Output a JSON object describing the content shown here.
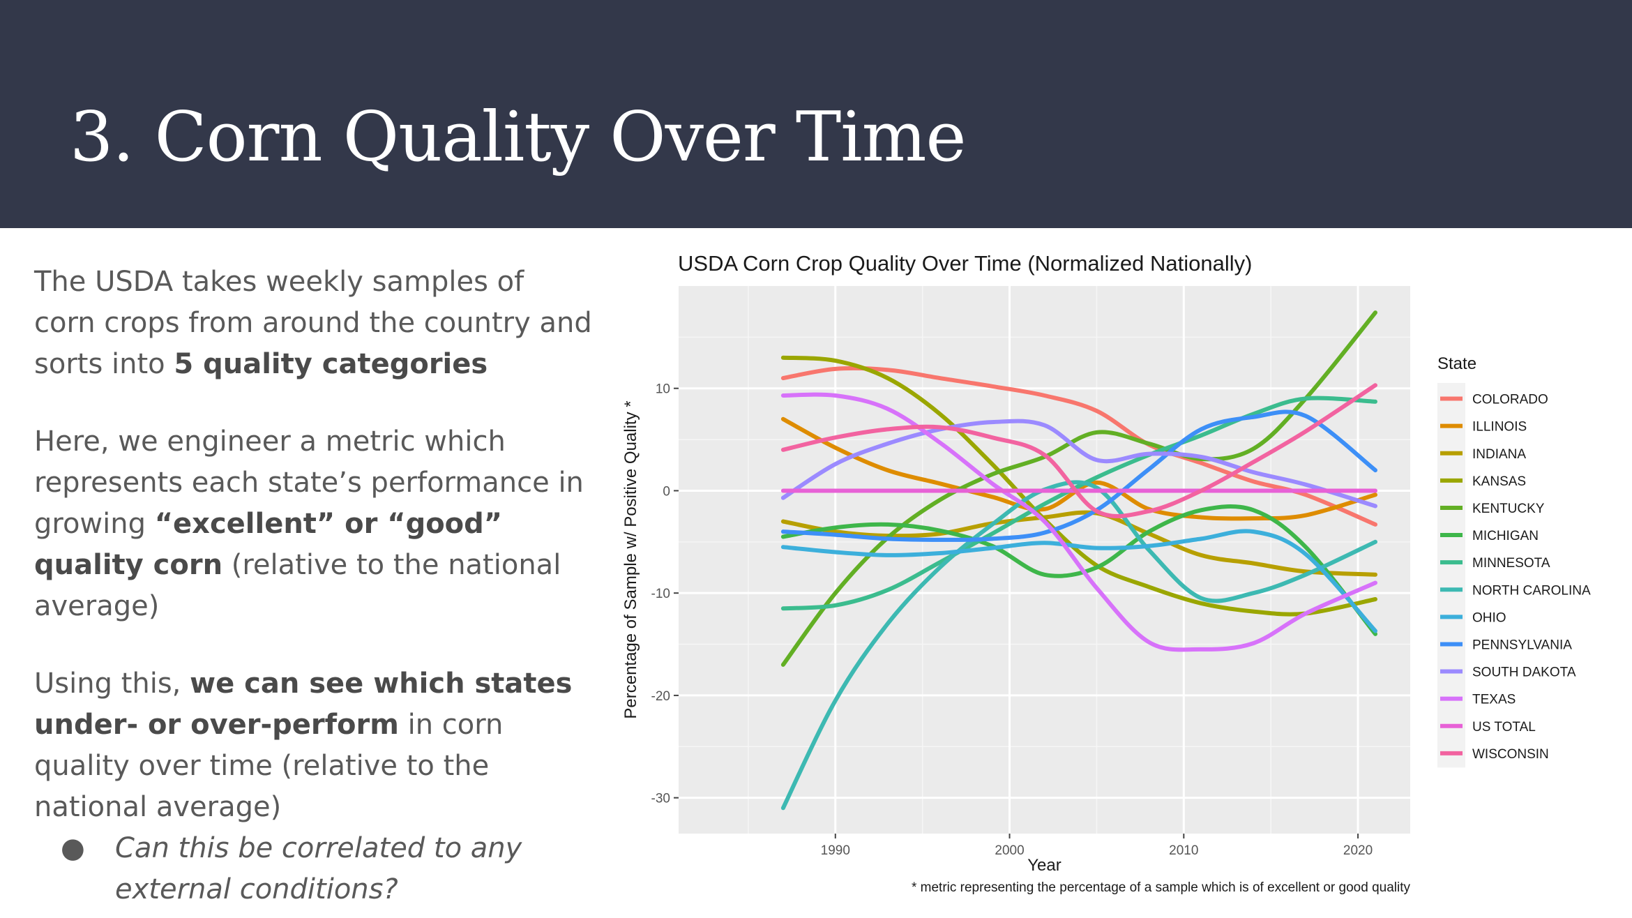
{
  "slide": {
    "title": "3. Corn Quality Over Time"
  },
  "text": {
    "p1_a": "The USDA takes weekly samples of corn crops from around the country and sorts into ",
    "p1_b": "5 quality categories",
    "p2_a": "Here, we engineer a metric which represents each state’s performance in growing ",
    "p2_b": "“excellent” or “good” quality corn",
    "p2_c": " (relative to the national average)",
    "p3_a": "Using this, ",
    "p3_b": "we can see which states under- or over-perform",
    "p3_c": " in corn quality over time (relative to the national average)",
    "bullet_symbol": "●",
    "bullet": "Can this be correlated to any external conditions?"
  },
  "chart_data": {
    "type": "line",
    "title": "USDA Corn Crop Quality Over Time (Normalized Nationally)",
    "xlabel": "Year",
    "ylabel": "Percentage of Sample w/ Positive Quality *",
    "footnote": "* metric representing the percentage of a sample which is of excellent or good quality",
    "xlim": [
      1981,
      2023
    ],
    "ylim": [
      -33.5,
      20
    ],
    "x_ticks": [
      1990,
      2000,
      2010,
      2020
    ],
    "y_ticks": [
      10,
      0,
      -10,
      -20,
      -30
    ],
    "grid": true,
    "panel_color": "#ebebeb",
    "legend_title": "State",
    "legend_position": "right",
    "x": [
      1987,
      1990,
      1993,
      1996,
      1999,
      2002,
      2005,
      2008,
      2011,
      2014,
      2017,
      2021
    ],
    "series": [
      {
        "name": "COLORADO",
        "color": "#F8766D",
        "values": [
          11,
          11.9,
          11.8,
          11.0,
          10.2,
          9.3,
          7.8,
          4.5,
          2.7,
          0.9,
          -0.4,
          -3.3
        ]
      },
      {
        "name": "ILLINOIS",
        "color": "#DE8C00",
        "values": [
          7,
          4.2,
          2.0,
          0.7,
          -0.6,
          -1.8,
          0.8,
          -1.8,
          -2.6,
          -2.7,
          -2.4,
          -0.4
        ]
      },
      {
        "name": "INDIANA",
        "color": "#B79F00",
        "values": [
          -3,
          -4.0,
          -4.4,
          -4.2,
          -3.2,
          -2.6,
          -2.2,
          -4.2,
          -6.3,
          -7.1,
          -7.9,
          -8.2
        ]
      },
      {
        "name": "KANSAS",
        "color": "#9AA600",
        "values": [
          13,
          12.7,
          11.0,
          7.5,
          2.6,
          -2.8,
          -7.3,
          -9.4,
          -11.0,
          -11.8,
          -12.0,
          -10.6
        ]
      },
      {
        "name": "KENTUCKY",
        "color": "#62AF24",
        "values": [
          -17,
          -10.0,
          -4.6,
          -0.9,
          1.6,
          3.3,
          5.7,
          4.6,
          3.1,
          4.1,
          9.0,
          17.4
        ]
      },
      {
        "name": "MICHIGAN",
        "color": "#3EB64A",
        "values": [
          -4.5,
          -3.6,
          -3.3,
          -3.9,
          -5.4,
          -8.2,
          -7.5,
          -4.0,
          -1.9,
          -1.9,
          -5.5,
          -14.0
        ]
      },
      {
        "name": "MINNESOTA",
        "color": "#3BBC8E",
        "values": [
          -11.5,
          -11.2,
          -9.7,
          -7.0,
          -4.2,
          -1.3,
          1.3,
          3.5,
          5.4,
          7.5,
          9.0,
          8.7
        ]
      },
      {
        "name": "NORTH CAROLINA",
        "color": "#3DB9B2",
        "values": [
          -31,
          -20.5,
          -13.0,
          -7.5,
          -3.3,
          0.1,
          0.3,
          -5.8,
          -10.5,
          -10.0,
          -8.2,
          -5.0
        ]
      },
      {
        "name": "OHIO",
        "color": "#3CAFDB",
        "values": [
          -5.5,
          -6.0,
          -6.3,
          -6.1,
          -5.6,
          -5.1,
          -5.6,
          -5.4,
          -4.7,
          -4.0,
          -6.2,
          -13.7
        ]
      },
      {
        "name": "PENNSYLVANIA",
        "color": "#3D8FF7",
        "values": [
          -4,
          -4.3,
          -4.7,
          -4.8,
          -4.7,
          -4.1,
          -1.9,
          2.1,
          6.0,
          7.2,
          7.3,
          2.0
        ]
      },
      {
        "name": "SOUTH DAKOTA",
        "color": "#9B8AFF",
        "values": [
          -0.7,
          2.6,
          4.6,
          6.0,
          6.7,
          6.4,
          3.0,
          3.6,
          3.3,
          1.8,
          0.6,
          -1.5
        ]
      },
      {
        "name": "TEXAS",
        "color": "#D772FA",
        "values": [
          9.3,
          9.3,
          8.0,
          4.7,
          0.7,
          -3.0,
          -9.5,
          -14.8,
          -15.5,
          -14.9,
          -12.0,
          -9.0
        ]
      },
      {
        "name": "US TOTAL",
        "color": "#E761D6",
        "values": [
          0,
          0,
          0,
          0,
          0,
          0,
          0,
          0,
          0,
          0,
          0,
          0
        ]
      },
      {
        "name": "WISCONSIN",
        "color": "#F263A0",
        "values": [
          4,
          5.2,
          6.0,
          6.2,
          5.2,
          3.5,
          -2.0,
          -2.0,
          0.0,
          2.8,
          5.8,
          10.3
        ]
      }
    ]
  }
}
